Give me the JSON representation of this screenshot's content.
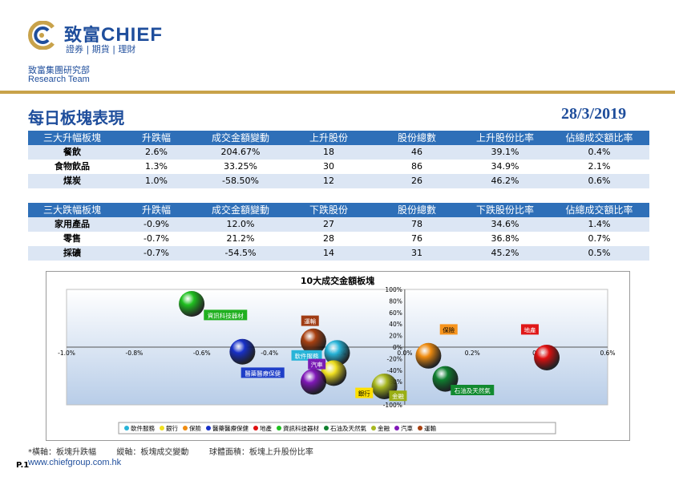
{
  "header": {
    "logo_cn": "致富",
    "logo_en": "CHIEF",
    "logo_sub": "證券 | 期貨 | 理財",
    "dept_cn": "致富集團研究部",
    "dept_en": "Research Team",
    "page_title": "每日板塊表現",
    "date": "28/3/2019"
  },
  "gainers_table": {
    "headers": [
      "三大升幅板塊",
      "升跌幅",
      "成交金額變動",
      "上升股份",
      "股份總數",
      "上升股份比率",
      "佔總成交額比率"
    ],
    "rows": [
      [
        "餐飲",
        "2.6%",
        "204.67%",
        "18",
        "46",
        "39.1%",
        "0.4%"
      ],
      [
        "食物飲品",
        "1.3%",
        "33.25%",
        "30",
        "86",
        "34.9%",
        "2.1%"
      ],
      [
        "煤炭",
        "1.0%",
        "-58.50%",
        "12",
        "26",
        "46.2%",
        "0.6%"
      ]
    ]
  },
  "losers_table": {
    "headers": [
      "三大跌幅板塊",
      "升跌幅",
      "成交金額變動",
      "下跌股份",
      "股份總數",
      "下跌股份比率",
      "佔總成交額比率"
    ],
    "rows": [
      [
        "家用產品",
        "-0.9%",
        "12.0%",
        "27",
        "78",
        "34.6%",
        "1.4%"
      ],
      [
        "零售",
        "-0.7%",
        "21.2%",
        "28",
        "76",
        "36.8%",
        "0.7%"
      ],
      [
        "採礦",
        "-0.7%",
        "-54.5%",
        "14",
        "31",
        "45.2%",
        "0.5%"
      ]
    ]
  },
  "chart_data": {
    "type": "scatter",
    "title": "10大成交金額板塊",
    "xlim": [
      -1.0,
      0.6
    ],
    "ylim": [
      -100,
      100
    ],
    "x_ticks": [
      "-1.0%",
      "-0.8%",
      "-0.6%",
      "-0.4%",
      "-0.2%",
      "0.0%",
      "0.2%",
      "0.4%",
      "0.6%"
    ],
    "y_ticks": [
      "100%",
      "80%",
      "60%",
      "40%",
      "20%",
      "0%",
      "-20%",
      "-40%",
      "-60%",
      "-80%",
      "-100%"
    ],
    "series": [
      {
        "name": "軟件服務",
        "x": -0.2,
        "y": -10,
        "color": "#28b4d8",
        "label_color": "#28b4d8"
      },
      {
        "name": "銀行",
        "x": -0.21,
        "y": -45,
        "color": "#f0e020",
        "label_color": "#ffe000"
      },
      {
        "name": "保險",
        "x": 0.07,
        "y": -15,
        "color": "#f08c10",
        "label_color": "#f7941d"
      },
      {
        "name": "醫藥醫療保健",
        "x": -0.48,
        "y": -8,
        "color": "#1830c8",
        "label_color": "#1f3fc8"
      },
      {
        "name": "地產",
        "x": 0.42,
        "y": -18,
        "color": "#e01010",
        "label_color": "#e01818"
      },
      {
        "name": "資訊科技器材",
        "x": -0.63,
        "y": 75,
        "color": "#20c020",
        "label_color": "#20b020"
      },
      {
        "name": "石油及天然氣",
        "x": 0.12,
        "y": -55,
        "color": "#108030",
        "label_color": "#128a30"
      },
      {
        "name": "金融",
        "x": -0.06,
        "y": -68,
        "color": "#a8b820",
        "label_color": "#9aae14"
      },
      {
        "name": "汽車",
        "x": -0.27,
        "y": -60,
        "color": "#8018b8",
        "label_color": "#7a1cb4"
      },
      {
        "name": "運輸",
        "x": -0.27,
        "y": 10,
        "color": "#a84010",
        "label_color": "#a03c14"
      }
    ],
    "legend_position": "bottom"
  },
  "footnote": "*橫軸：板塊升跌幅        縱軸：板塊成交變動        球體面積：板塊上升股份比率",
  "page_number": "P.1",
  "website": "www.chiefgroup.com.hk"
}
